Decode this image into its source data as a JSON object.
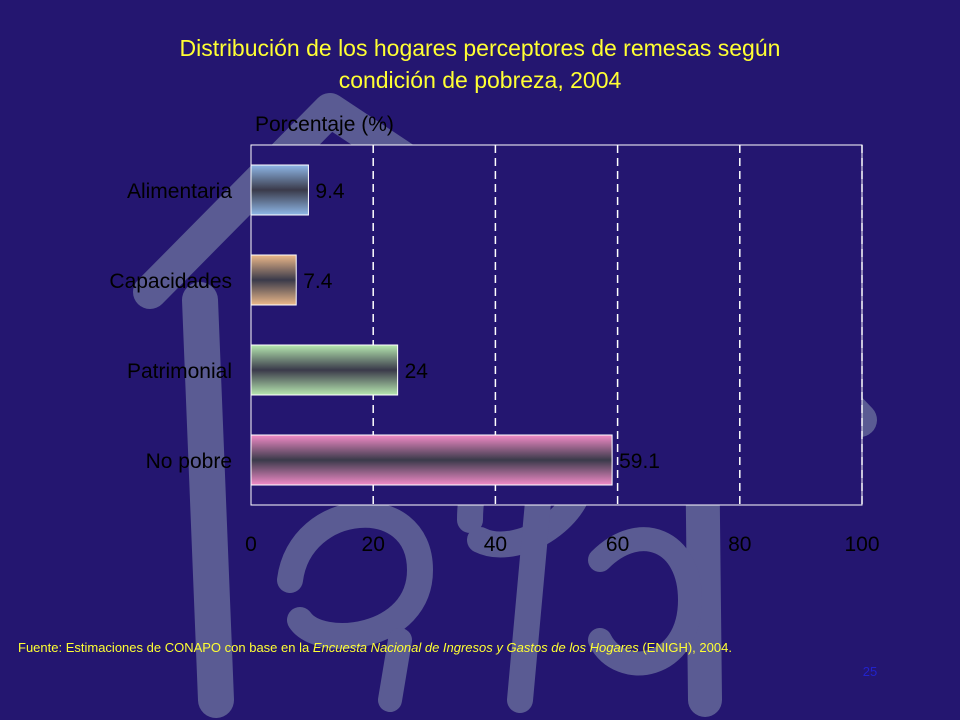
{
  "title": {
    "line1": "Distribución de los hogares perceptores de remesas según",
    "line2": "condición de pobreza, 2004"
  },
  "chart_data": {
    "type": "bar",
    "orientation": "horizontal",
    "categories": [
      "Alimentaria",
      "Capacidades",
      "Patrimonial",
      "No pobre"
    ],
    "values": [
      9.4,
      7.4,
      24,
      59.1
    ],
    "value_labels": [
      "9.4",
      "7.4",
      "24",
      "59.1"
    ],
    "bar_colors": [
      "#8FB8E8",
      "#EDB98A",
      "#B7E8B0",
      "#F28BC8"
    ],
    "xlabel": "Porcentaje (%)",
    "xlim": [
      0,
      100
    ],
    "xticks": [
      0,
      20,
      40,
      60,
      80,
      100
    ],
    "xtick_labels": [
      "0",
      "20",
      "40",
      "60",
      "80",
      "100"
    ],
    "grid": "vertical dashed",
    "legend": "none"
  },
  "footer": {
    "source_prefix": "Fuente: Estimaciones de CONAPO con base en la ",
    "source_italic": "Encuesta Nacional de Ingresos y Gastos de los Hogares",
    "source_suffix": " (ENIGH), 2004."
  },
  "page_number": "25",
  "colors": {
    "background": "#241670",
    "title": "#FFFF33",
    "text": "#000000",
    "page_number": "#2222CC",
    "watermark": "#5A5B93"
  },
  "watermark_icon": "house-logo-icon"
}
